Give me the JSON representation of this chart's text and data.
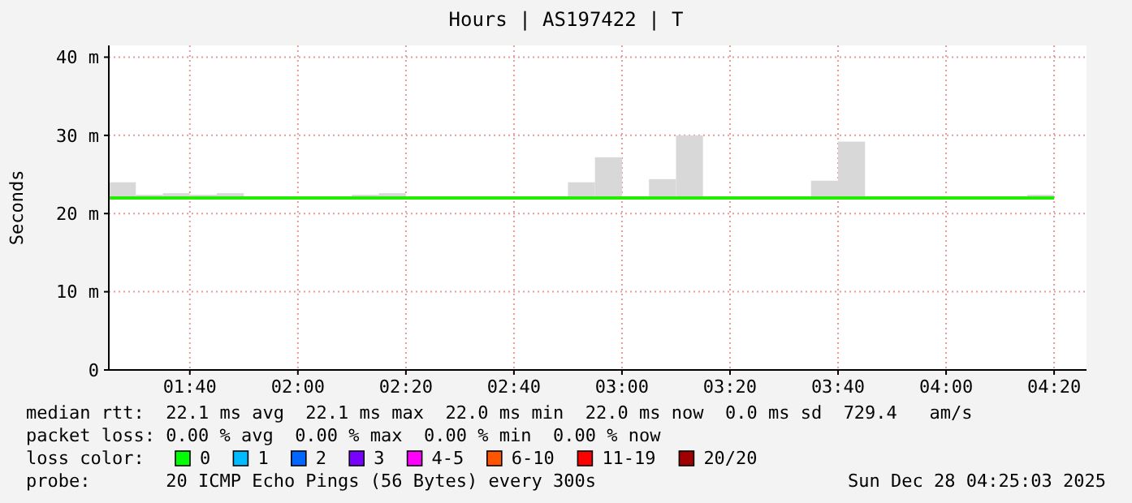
{
  "chart_data": {
    "type": "step",
    "title": "Hours | AS197422 | T",
    "ylabel": "Seconds",
    "x": [
      "2025-12-28T01:25",
      "2025-12-28T01:30",
      "2025-12-28T01:35",
      "2025-12-28T01:40",
      "2025-12-28T01:45",
      "2025-12-28T01:50",
      "2025-12-28T01:55",
      "2025-12-28T02:00",
      "2025-12-28T02:05",
      "2025-12-28T02:10",
      "2025-12-28T02:15",
      "2025-12-28T02:20",
      "2025-12-28T02:25",
      "2025-12-28T02:30",
      "2025-12-28T02:35",
      "2025-12-28T02:40",
      "2025-12-28T02:45",
      "2025-12-28T02:50",
      "2025-12-28T02:55",
      "2025-12-28T03:00",
      "2025-12-28T03:05",
      "2025-12-28T03:10",
      "2025-12-28T03:15",
      "2025-12-28T03:20",
      "2025-12-28T03:25",
      "2025-12-28T03:30",
      "2025-12-28T03:35",
      "2025-12-28T03:40",
      "2025-12-28T03:45",
      "2025-12-28T03:50",
      "2025-12-28T03:55",
      "2025-12-28T04:00",
      "2025-12-28T04:05",
      "2025-12-28T04:10",
      "2025-12-28T04:15",
      "2025-12-28T04:20"
    ],
    "series": [
      {
        "color": "#22ee00",
        "values": [
          22,
          22,
          22,
          22,
          22,
          22,
          22,
          22,
          22,
          22,
          22,
          22,
          22,
          22,
          22,
          22,
          22,
          22,
          22,
          22,
          22,
          22,
          22,
          22,
          22,
          22,
          22,
          22,
          22,
          22,
          22,
          22,
          22,
          22,
          22,
          22
        ],
        "lower": [
          21.8,
          21.8,
          21.8,
          21.8,
          21.8,
          null,
          null,
          null,
          null,
          21.8,
          21.8,
          null,
          null,
          null,
          null,
          null,
          null,
          21.8,
          21.8,
          null,
          21.8,
          21.8,
          null,
          null,
          null,
          null,
          21.8,
          21.8,
          null,
          null,
          null,
          null,
          null,
          null,
          21.8,
          21.8
        ],
        "upper": [
          24.0,
          22.4,
          22.6,
          22.4,
          22.6,
          null,
          null,
          null,
          null,
          22.4,
          22.6,
          null,
          null,
          null,
          null,
          null,
          null,
          24.0,
          27.2,
          null,
          24.4,
          30.0,
          null,
          null,
          null,
          null,
          24.2,
          29.2,
          null,
          null,
          null,
          null,
          null,
          null,
          22.4,
          22.4
        ]
      }
    ],
    "xlim": [
      "2025-12-28T01:25",
      "2025-12-28T04:26"
    ],
    "xticks": [
      {
        "value": "2025-12-28T01:40",
        "label": "01:40"
      },
      {
        "value": "2025-12-28T02:00",
        "label": "02:00"
      },
      {
        "value": "2025-12-28T02:20",
        "label": "02:20"
      },
      {
        "value": "2025-12-28T02:40",
        "label": "02:40"
      },
      {
        "value": "2025-12-28T03:00",
        "label": "03:00"
      },
      {
        "value": "2025-12-28T03:20",
        "label": "03:20"
      },
      {
        "value": "2025-12-28T03:40",
        "label": "03:40"
      },
      {
        "value": "2025-12-28T04:00",
        "label": "04:00"
      },
      {
        "value": "2025-12-28T04:20",
        "label": "04:20"
      }
    ],
    "ylim": [
      0,
      41.5
    ],
    "yticks": [
      0,
      {
        "value": 10,
        "label": "10 m"
      },
      {
        "value": 20,
        "label": "20 m"
      },
      {
        "value": 30,
        "label": "30 m"
      },
      {
        "value": 40,
        "label": "40 m"
      }
    ],
    "grid": true,
    "line_style": "solid",
    "marker": "none",
    "annotations": [
      "median rtt:  22.1 ms avg  22.1 ms max  22.0 ms min  22.0 ms now  0.0 ms sd  729.4   am/s",
      "packet loss: 0.00 % avg  0.00 % max  0.00 % min  0.00 % now",
      "loss color:",
      "0",
      "1",
      "2",
      "3",
      "4-5",
      "6-10",
      "11-19",
      "20/20",
      "probe:       20 ICMP Echo Pings (56 Bytes) every 300s",
      "Sun Dec 28 04:25:03 2025"
    ]
  }
}
